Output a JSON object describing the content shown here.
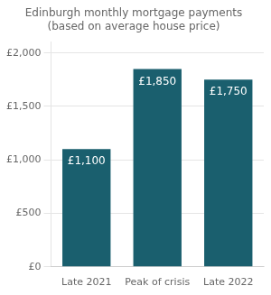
{
  "chart_data": {
    "type": "bar",
    "title": "Edinburgh monthly mortgage payments\n(based on average house price)",
    "categories": [
      "Late 2021",
      "Peak of crisis",
      "Late 2022"
    ],
    "values": [
      1100,
      1850,
      1750
    ],
    "value_labels": [
      "£1,100",
      "£1,850",
      "£1,750"
    ],
    "data_labels": true,
    "color": "#1a5f6e",
    "ylim": [
      0,
      2100
    ],
    "yticks": [
      {
        "value": 0,
        "label": "£0"
      },
      {
        "value": 500,
        "label": "£500"
      },
      {
        "value": 1000,
        "label": "£1,000"
      },
      {
        "value": 1500,
        "label": "£1,500"
      },
      {
        "value": 2000,
        "label": "£2,000"
      }
    ],
    "grid": true
  }
}
